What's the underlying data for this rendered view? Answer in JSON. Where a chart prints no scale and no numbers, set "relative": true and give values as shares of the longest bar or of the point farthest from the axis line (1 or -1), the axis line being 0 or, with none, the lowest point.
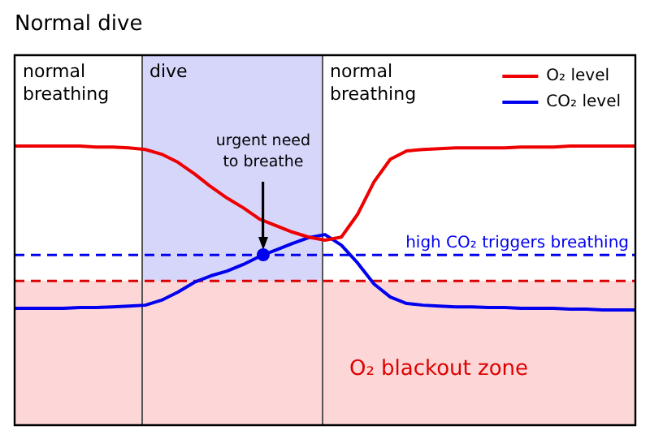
{
  "chart_data": {
    "type": "line",
    "title": "Normal dive",
    "relative": true,
    "legend": "top right",
    "marker": "none",
    "line_style": "solid",
    "categories": [
      null,
      null,
      null,
      null,
      null,
      null,
      null,
      null,
      null,
      null,
      null,
      null,
      null,
      null,
      null,
      null,
      null,
      null,
      null,
      null,
      null,
      null,
      null,
      null,
      null,
      null,
      null,
      null,
      null,
      null,
      null,
      null,
      null,
      null,
      null,
      null,
      null,
      null,
      null
    ],
    "series": [
      {
        "name": "O₂ level",
        "color": "#ee0000",
        "values": [
          1.0,
          1.0,
          1.0,
          1.0,
          1.0,
          0.997,
          0.997,
          0.994,
          0.988,
          0.971,
          0.942,
          0.901,
          0.855,
          0.814,
          0.779,
          0.738,
          0.715,
          0.692,
          0.674,
          0.663,
          0.674,
          0.756,
          0.872,
          0.953,
          0.983,
          0.988,
          0.991,
          0.994,
          0.994,
          0.994,
          0.994,
          0.997,
          0.997,
          0.997,
          1.0,
          1.0,
          1.0,
          1.0,
          1.0
        ]
      },
      {
        "name": "CO₂ level",
        "color": "#0000ee",
        "values": [
          0.419,
          0.419,
          0.419,
          0.419,
          0.422,
          0.422,
          0.424,
          0.427,
          0.43,
          0.448,
          0.477,
          0.512,
          0.535,
          0.552,
          0.576,
          0.605,
          0.628,
          0.651,
          0.672,
          0.683,
          0.645,
          0.581,
          0.506,
          0.459,
          0.436,
          0.43,
          0.427,
          0.424,
          0.424,
          0.422,
          0.422,
          0.419,
          0.419,
          0.419,
          0.416,
          0.416,
          0.413,
          0.413,
          0.413
        ]
      }
    ],
    "bands": [
      {
        "axis": "y",
        "from": 0,
        "to": 0.517,
        "label": "O₂ blackout zone",
        "color": "#fdd7d7"
      }
    ],
    "ref_lines": [
      {
        "axis": "y",
        "value": 0.61,
        "label": "high CO₂ triggers breathing",
        "color": "#0000ee",
        "line_style": "dashed"
      },
      {
        "axis": "y",
        "value": 0.517,
        "color": "#dd0000",
        "line_style": "dashed"
      }
    ],
    "annotations": [
      "normal breathing",
      "dive",
      "normal breathing",
      "urgent need to breathe"
    ]
  }
}
